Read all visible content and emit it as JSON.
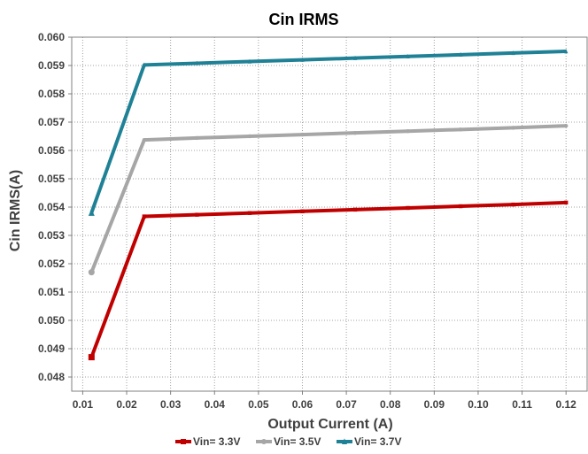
{
  "chart_data": {
    "type": "line",
    "title": "Cin IRMS",
    "xlabel": "Output Current (A)",
    "ylabel": "Cin IRMS(A)",
    "xlim": [
      0.0075,
      0.125
    ],
    "ylim": [
      0.0475,
      0.06
    ],
    "x_ticks": [
      "0.01",
      "0.02",
      "0.03",
      "0.04",
      "0.05",
      "0.06",
      "0.07",
      "0.08",
      "0.09",
      "0.10",
      "0.11",
      "0.12"
    ],
    "x_tick_values": [
      0.01,
      0.02,
      0.03,
      0.04,
      0.05,
      0.06,
      0.07,
      0.08,
      0.09,
      0.1,
      0.11,
      0.12
    ],
    "y_ticks": [
      "0.048",
      "0.049",
      "0.050",
      "0.051",
      "0.052",
      "0.053",
      "0.054",
      "0.055",
      "0.056",
      "0.057",
      "0.058",
      "0.059",
      "0.060"
    ],
    "y_tick_values": [
      0.048,
      0.049,
      0.05,
      0.051,
      0.052,
      0.053,
      0.054,
      0.055,
      0.056,
      0.057,
      0.058,
      0.059,
      0.06
    ],
    "grid": true,
    "legend_position": "bottom",
    "x": [
      0.012,
      0.024,
      0.036,
      0.048,
      0.06,
      0.072,
      0.084,
      0.096,
      0.108,
      0.12
    ],
    "series": [
      {
        "name": "Vin= 3.3V",
        "color": "#c00000",
        "marker": "square",
        "values": [
          0.0487,
          0.05367,
          0.05373,
          0.05379,
          0.05385,
          0.05391,
          0.05397,
          0.05403,
          0.05409,
          0.05416
        ]
      },
      {
        "name": "Vin= 3.5V",
        "color": "#a6a6a6",
        "marker": "circle",
        "values": [
          0.0517,
          0.05637,
          0.05644,
          0.0565,
          0.05656,
          0.05662,
          0.05668,
          0.05674,
          0.0568,
          0.05687
        ]
      },
      {
        "name": "Vin= 3.7V",
        "color": "#1f8196",
        "marker": "triangle",
        "values": [
          0.0538,
          0.05902,
          0.05908,
          0.05914,
          0.0592,
          0.05926,
          0.05932,
          0.05938,
          0.05944,
          0.0595
        ]
      }
    ]
  }
}
